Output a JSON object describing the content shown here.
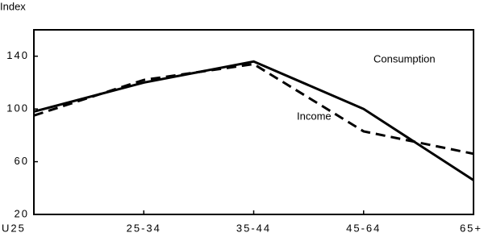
{
  "chart_data": {
    "type": "line",
    "y_label": "Index",
    "categories": [
      "U25",
      "25-34",
      "35-44",
      "45-64",
      "65+"
    ],
    "series": [
      {
        "name": "Consumption",
        "color": "#000000",
        "line_style": "solid",
        "values": [
          98,
          120,
          136,
          100,
          46
        ]
      },
      {
        "name": "Income",
        "color": "#000000",
        "line_style": "dashed",
        "values": [
          95,
          122,
          134,
          83,
          66
        ]
      }
    ],
    "ylim": [
      20,
      160
    ],
    "yticks": [
      20,
      60,
      100,
      140
    ],
    "grid": false,
    "legend": false
  }
}
